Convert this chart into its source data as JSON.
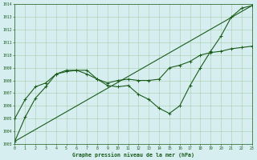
{
  "background_color": "#d6eef0",
  "grid_color": "#aaccaa",
  "line_color": "#1a5c1a",
  "xlabel": "Graphe pression niveau de la mer (hPa)",
  "xlim": [
    0,
    23
  ],
  "ylim": [
    1003,
    1014
  ],
  "yticks": [
    1003,
    1004,
    1005,
    1006,
    1007,
    1008,
    1009,
    1010,
    1011,
    1012,
    1013,
    1014
  ],
  "xticks": [
    0,
    1,
    2,
    3,
    4,
    5,
    6,
    7,
    8,
    9,
    10,
    11,
    12,
    13,
    14,
    15,
    16,
    17,
    18,
    19,
    20,
    21,
    22,
    23
  ],
  "line1_x": [
    0,
    1,
    2,
    3,
    4,
    5,
    6,
    7,
    8,
    9,
    10,
    11,
    12,
    13,
    14,
    15,
    16,
    17,
    18,
    19,
    20,
    21,
    22,
    23
  ],
  "line1_y": [
    1003.2,
    1005.1,
    1006.6,
    1007.5,
    1008.5,
    1008.7,
    1008.8,
    1008.8,
    1008.1,
    1007.6,
    1007.5,
    1007.6,
    1006.9,
    1006.5,
    1005.8,
    1005.4,
    1006.0,
    1007.6,
    1009.0,
    1010.3,
    1011.5,
    1013.0,
    1013.7,
    1013.9
  ],
  "line2_x": [
    0,
    23
  ],
  "line2_y": [
    1003.2,
    1013.9
  ],
  "line3_x": [
    0,
    1,
    2,
    3,
    4,
    5,
    6,
    7,
    8,
    9,
    10,
    11,
    12,
    13,
    14,
    15,
    16,
    17,
    18,
    19,
    20,
    21,
    22,
    23
  ],
  "line3_y": [
    1005.0,
    1006.5,
    1007.5,
    1007.8,
    1008.5,
    1008.8,
    1008.8,
    1008.5,
    1008.1,
    1007.8,
    1008.0,
    1008.1,
    1008.0,
    1008.0,
    1008.1,
    1009.0,
    1009.2,
    1009.5,
    1010.0,
    1010.2,
    1010.3,
    1010.5,
    1010.6,
    1010.7
  ],
  "figsize": [
    3.2,
    2.0
  ],
  "dpi": 100
}
